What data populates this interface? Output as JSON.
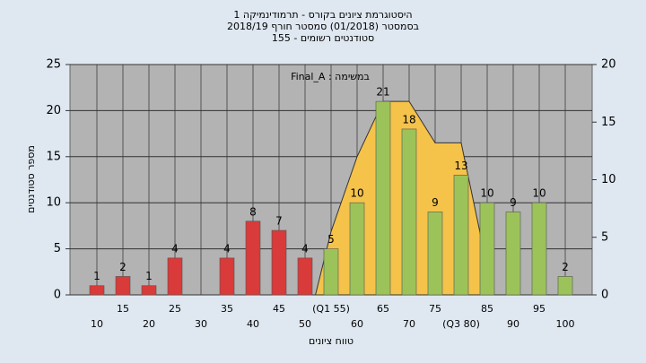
{
  "chart_data": {
    "type": "bar",
    "title": "היסטוגרמת ציונים בקורס - תרמודינמיקה 1",
    "subtitle": "בסמסטר (01/2018) סמסטר חורף 2018/19",
    "subtitle2": "סטודנטים רשומים - 155",
    "annotation": "במשימה : Final_A",
    "x_label": "טווח ציונים",
    "y_label": "מספר סטודנטים",
    "categories": [
      "10",
      "15",
      "20",
      "25",
      "30",
      "35",
      "40",
      "45",
      "50",
      "(Q1 55)",
      "60",
      "65",
      "70",
      "75",
      "(Q3 80)",
      "85",
      "90",
      "95",
      "100"
    ],
    "values": [
      1,
      2,
      1,
      4,
      null,
      4,
      8,
      7,
      4,
      5,
      10,
      21,
      18,
      9,
      13,
      10,
      9,
      10,
      2
    ],
    "colors": [
      "#d93a3a",
      "#d93a3a",
      "#d93a3a",
      "#d93a3a",
      "#d93a3a",
      "#d93a3a",
      "#d93a3a",
      "#d93a3a",
      "#d93a3a",
      "#9cc35a",
      "#9cc35a",
      "#9cc35a",
      "#9cc35a",
      "#9cc35a",
      "#9cc35a",
      "#9cc35a",
      "#9cc35a",
      "#9cc35a",
      "#9cc35a"
    ],
    "ylim": [
      0,
      25
    ],
    "yticks": [
      0,
      5,
      10,
      15,
      20,
      25
    ],
    "y2lim": [
      0,
      20
    ],
    "y2ticks": [
      0,
      5,
      10,
      15,
      20
    ],
    "area": {
      "axis": "y2",
      "color": "#f5c24a",
      "x": [
        52,
        55,
        60,
        65,
        70,
        75,
        80,
        84
      ],
      "values": [
        0,
        5.5,
        12,
        16.8,
        16.8,
        13.2,
        13.2,
        4.6
      ]
    },
    "grid": true
  }
}
